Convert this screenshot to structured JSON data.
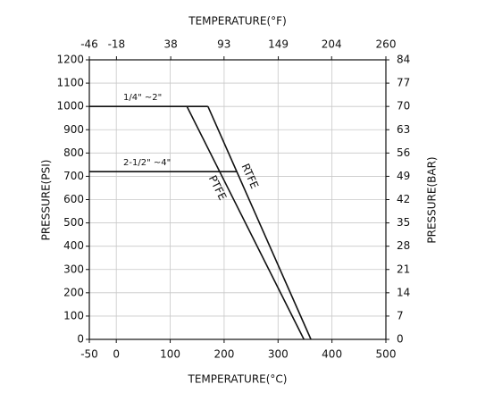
{
  "chart_data": {
    "type": "line",
    "title": "TEMPERATURE(°F)",
    "x_label": "TEMPERATURE(°C)",
    "y_label": "PRESSURE(PSI)",
    "y2_label": "PRESSURE(BAR)",
    "xlim": [
      -50,
      500
    ],
    "xticks": [
      -50,
      0,
      100,
      200,
      300,
      400,
      500
    ],
    "x2lim": [
      -46,
      260
    ],
    "x2ticks": [
      -46,
      -18,
      38,
      93,
      149,
      204,
      260
    ],
    "ylim": [
      0,
      1200
    ],
    "yticks": [
      0,
      100,
      200,
      300,
      400,
      500,
      600,
      700,
      800,
      900,
      1000,
      1100,
      1200
    ],
    "y2lim": [
      0,
      84
    ],
    "y2ticks": [
      0,
      7,
      14,
      21,
      28,
      35,
      42,
      49,
      56,
      63,
      70,
      77,
      84
    ],
    "grid": true,
    "series": [
      {
        "name": "1/4\" ~2\"",
        "color": "#111111",
        "x": [
          -50,
          170
        ],
        "values": [
          1000,
          1000
        ]
      },
      {
        "name": "2-1/2\" ~4\"",
        "color": "#111111",
        "x": [
          -50,
          224
        ],
        "values": [
          720,
          720
        ]
      },
      {
        "name": "RTFE",
        "color": "#111111",
        "x": [
          170,
          361
        ],
        "values": [
          1000,
          0
        ]
      },
      {
        "name": "PTFE",
        "color": "#111111",
        "x": [
          131,
          348
        ],
        "values": [
          1000,
          0
        ]
      }
    ]
  }
}
